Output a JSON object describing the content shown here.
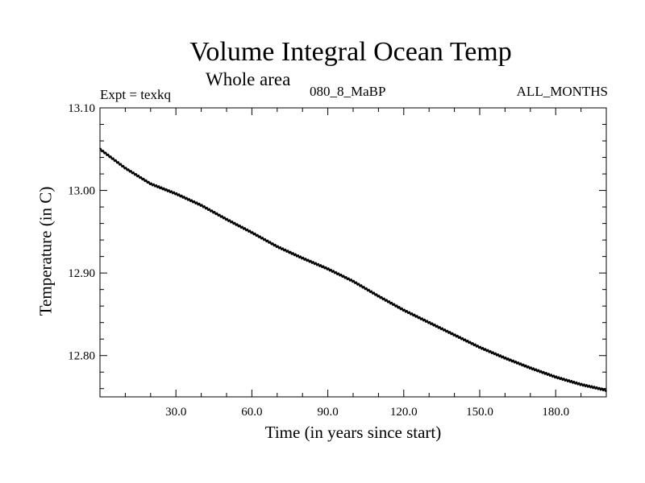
{
  "chart_data": {
    "type": "line",
    "title": "Volume Integral Ocean Temp",
    "subtitle": "Whole area",
    "label_left": "Expt = texkq",
    "label_center": "080_8_MaBP",
    "label_right": "ALL_MONTHS",
    "xlabel": "Time (in years since start)",
    "ylabel": "Temperature (in C)",
    "xlim": [
      0,
      200
    ],
    "ylim": [
      12.75,
      13.1
    ],
    "xticks": [
      30,
      60,
      90,
      120,
      150,
      180
    ],
    "xtick_labels": [
      "30.0",
      "60.0",
      "90.0",
      "120.0",
      "150.0",
      "180.0"
    ],
    "yticks": [
      12.8,
      12.9,
      13.0,
      13.1
    ],
    "ytick_labels": [
      "12.80",
      "12.90",
      "13.00",
      "13.10"
    ],
    "series": [
      {
        "name": "Volume Integral Ocean Temp",
        "color": "#000000",
        "x": [
          0,
          10,
          20,
          30,
          40,
          50,
          60,
          70,
          80,
          90,
          100,
          110,
          120,
          130,
          140,
          150,
          160,
          170,
          180,
          190,
          200
        ],
        "y": [
          13.05,
          13.027,
          13.008,
          12.996,
          12.982,
          12.965,
          12.949,
          12.932,
          12.918,
          12.905,
          12.89,
          12.872,
          12.855,
          12.84,
          12.825,
          12.81,
          12.797,
          12.785,
          12.774,
          12.765,
          12.758
        ]
      }
    ]
  }
}
